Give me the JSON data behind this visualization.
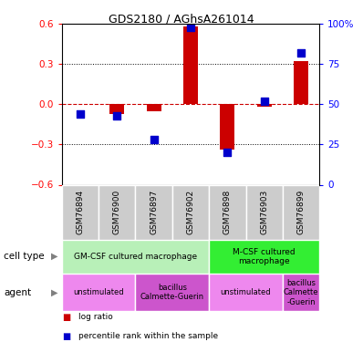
{
  "title": "GDS2180 / AGhsA261014",
  "samples": [
    "GSM76894",
    "GSM76900",
    "GSM76897",
    "GSM76902",
    "GSM76898",
    "GSM76903",
    "GSM76899"
  ],
  "log_ratio": [
    0.0,
    -0.07,
    -0.05,
    0.58,
    -0.34,
    -0.02,
    0.32
  ],
  "percentile": [
    44,
    43,
    28,
    98,
    20,
    52,
    82
  ],
  "ylim_left": [
    -0.6,
    0.6
  ],
  "ylim_right": [
    0,
    100
  ],
  "yticks_left": [
    -0.6,
    -0.3,
    0.0,
    0.3,
    0.6
  ],
  "yticks_right": [
    0,
    25,
    50,
    75,
    100
  ],
  "bar_color": "#cc0000",
  "dot_color": "#0000cc",
  "zero_line_color": "#cc0000",
  "cell_type_row": [
    {
      "label": "GM-CSF cultured macrophage",
      "span": [
        0,
        4
      ],
      "color": "#b8f0b8"
    },
    {
      "label": "M-CSF cultured\nmacrophage",
      "span": [
        4,
        7
      ],
      "color": "#33ee33"
    }
  ],
  "agent_row": [
    {
      "label": "unstimulated",
      "span": [
        0,
        2
      ],
      "color": "#ee88ee"
    },
    {
      "label": "bacillus\nCalmette-Guerin",
      "span": [
        2,
        4
      ],
      "color": "#cc55cc"
    },
    {
      "label": "unstimulated",
      "span": [
        4,
        6
      ],
      "color": "#ee88ee"
    },
    {
      "label": "bacillus\nCalmette\n-Guerin",
      "span": [
        6,
        7
      ],
      "color": "#cc55cc"
    }
  ],
  "cell_type_label": "cell type",
  "agent_label": "agent",
  "sample_box_color": "#cccccc",
  "legend_items": [
    {
      "color": "#cc0000",
      "label": "log ratio"
    },
    {
      "color": "#0000cc",
      "label": "percentile rank within the sample"
    }
  ]
}
